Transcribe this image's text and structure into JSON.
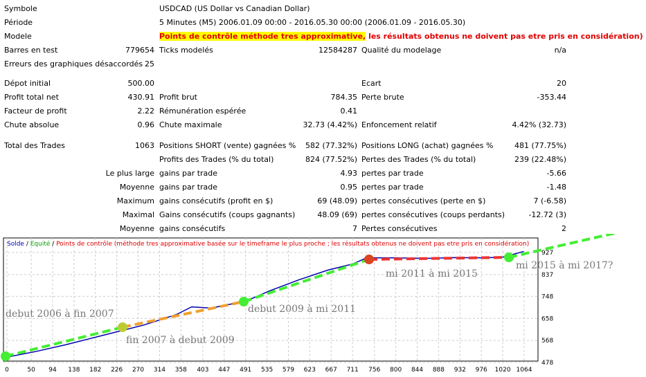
{
  "report": {
    "symbol": {
      "label": "Symbole",
      "value": "USDCAD (US Dollar vs Canadian Dollar)"
    },
    "period": {
      "label": "Période",
      "value": "5 Minutes (M5) 2006.01.09 00:00 - 2016.05.30 00:00 (2006.01.09 - 2016.05.30)"
    },
    "model": {
      "label": "Modele",
      "value_highlight": "Points de contrôle méthode tres approximative,",
      "value_rest": " les résultats obtenus ne doivent pas etre pris en considération)"
    },
    "rows": [
      {
        "y": 73,
        "cells": [
          [
            "Barres en test",
            "779654"
          ],
          [
            "Ticks modelés",
            "12584287"
          ],
          [
            "Qualité du modelage",
            "n/a"
          ]
        ]
      },
      {
        "y": 93,
        "cells": [
          [
            "Erreurs des graphiques désaccordés",
            "25"
          ],
          null,
          null
        ]
      },
      {
        "y": 121,
        "cells": [
          [
            "Dépot initial",
            "500.00"
          ],
          null,
          [
            "Ecart",
            "20"
          ]
        ]
      },
      {
        "y": 141,
        "cells": [
          [
            "Profit total net",
            "430.91"
          ],
          [
            "Profit brut",
            "784.35"
          ],
          [
            "Perte brute",
            "-353.44"
          ]
        ]
      },
      {
        "y": 161,
        "cells": [
          [
            "Facteur de profit",
            "2.22"
          ],
          [
            "Rémunération espérée",
            "0.41"
          ],
          null
        ]
      },
      {
        "y": 181,
        "cells": [
          [
            "Chute absolue",
            "0.96"
          ],
          [
            "Chute maximale",
            "32.73 (4.42%)"
          ],
          [
            "Enfoncement relatif",
            "4.42% (32.73)"
          ]
        ]
      },
      {
        "y": 211,
        "cells": [
          [
            "Total des Trades",
            "1063"
          ],
          [
            "Positions SHORT (vente) gagnées %",
            "582 (77.32%)"
          ],
          [
            "Positions LONG (achat) gagnées %",
            "481 (77.75%)"
          ]
        ]
      },
      {
        "y": 231,
        "cells": [
          null,
          [
            "Profits des Trades (% du total)",
            "824 (77.52%)"
          ],
          [
            "Pertes des Trades (% du total)",
            "239 (22.48%)"
          ]
        ]
      },
      {
        "y": 251,
        "cells": [
          [
            "Le plus large",
            ""
          ],
          [
            "gains par trade",
            "4.93"
          ],
          [
            "pertes par trade",
            "-5.66"
          ]
        ]
      },
      {
        "y": 271,
        "cells": [
          [
            "Moyenne",
            ""
          ],
          [
            "gains par trade",
            "0.95"
          ],
          [
            "pertes par trade",
            "-1.48"
          ]
        ]
      },
      {
        "y": 291,
        "cells": [
          [
            "Maximum",
            ""
          ],
          [
            "gains consécutifs (profit en $)",
            "69 (48.09)"
          ],
          [
            "pertes consécutives (perte en $)",
            "7 (-6.58)"
          ]
        ]
      },
      {
        "y": 311,
        "cells": [
          [
            "Maximal",
            ""
          ],
          [
            "Gains consécutifs (coups gagnants)",
            "48.09 (69)"
          ],
          [
            "pertes consécutives (coups perdants)",
            "-12.72 (3)"
          ]
        ]
      },
      {
        "y": 331,
        "cells": [
          [
            "Moyenne",
            ""
          ],
          [
            "gains consécutifs",
            "7"
          ],
          [
            "Pertes consécutives",
            "2"
          ]
        ]
      }
    ]
  },
  "chart": {
    "legend": {
      "solde": "Solde",
      "sep": " / ",
      "equite": "Equité",
      "points": "Points de contrôle (méthode tres approximative basée sur le timeframe le plus proche ; les résultats obtenus ne doivent pas etre pris en considération)"
    },
    "colors": {
      "solde": "#0000b0",
      "equite": "#00a000",
      "points": "#e00000",
      "trend": "#44ee33",
      "orange": "#f0a030"
    },
    "annotations": [
      "debut 2006 à fin 2007",
      "fin 2007 à debut 2009",
      "debut 2009 à mi 2011",
      "mi 2011 à mi 2015",
      "mi 2015 à mi 2017?"
    ]
  },
  "chart_data": {
    "type": "line",
    "x_ticks": [
      0,
      50,
      94,
      138,
      182,
      226,
      270,
      314,
      358,
      403,
      447,
      491,
      535,
      579,
      623,
      667,
      711,
      756,
      800,
      844,
      888,
      932,
      976,
      1020,
      1064
    ],
    "y_ticks": [
      478,
      568,
      658,
      748,
      837,
      927
    ],
    "xlim": [
      0,
      1064
    ],
    "ylim": [
      478,
      945
    ],
    "series": [
      {
        "name": "Solde",
        "x": [
          0,
          60,
          120,
          180,
          240,
          280,
          320,
          350,
          380,
          420,
          450,
          470,
          491,
          540,
          600,
          660,
          711,
          740,
          800,
          860,
          920,
          980,
          1020,
          1063
        ],
        "y": [
          500,
          523,
          550,
          580,
          610,
          630,
          655,
          675,
          705,
          700,
          712,
          720,
          728,
          770,
          815,
          855,
          880,
          905,
          905,
          903,
          906,
          905,
          908,
          931
        ]
      }
    ]
  }
}
